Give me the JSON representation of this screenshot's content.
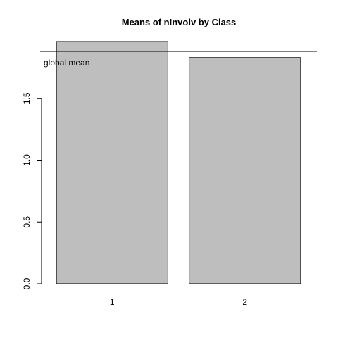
{
  "chart_data": {
    "type": "bar",
    "title": "Means of nInvolv by Class",
    "xlabel": "",
    "ylabel": "",
    "categories": [
      "1",
      "2"
    ],
    "values": [
      1.96,
      1.83
    ],
    "ylim": [
      0,
      1.96
    ],
    "yticks": [
      "0.0",
      "0.5",
      "1.0",
      "1.5"
    ],
    "bar_color": "#bebebe",
    "grid": false,
    "reference_line": {
      "value": 1.88,
      "label": "global mean"
    }
  }
}
